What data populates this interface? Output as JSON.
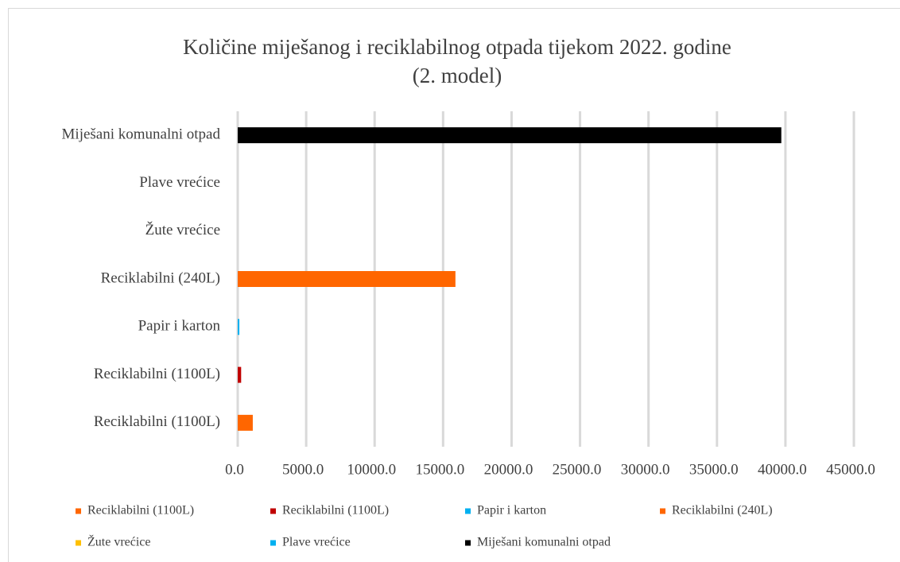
{
  "chart_data": {
    "type": "bar",
    "orientation": "horizontal",
    "title": [
      "Količine miješanog i reciklabilnog otpada tijekom 2022. godine",
      "(2. model)"
    ],
    "categories": [
      "Reciklabilni (1100L)",
      "Reciklabilni (1100L)",
      "Papir i karton",
      "Reciklabilni (240L)",
      "Žute vrećice",
      "Plave vrećice",
      "Miješani komunalni otpad"
    ],
    "values": [
      1100,
      250,
      120,
      15900,
      0,
      0,
      39700
    ],
    "colors": [
      "#ff6600",
      "#c00000",
      "#00b0f0",
      "#ff6600",
      "#ffc000",
      "#00b0f0",
      "#000000"
    ],
    "xlim": [
      0,
      45000
    ],
    "xticks": [
      {
        "value": 0,
        "label": "0.0"
      },
      {
        "value": 5000,
        "label": "5000.0"
      },
      {
        "value": 10000,
        "label": "10000.0"
      },
      {
        "value": 15000,
        "label": "15000.0"
      },
      {
        "value": 20000,
        "label": "20000.0"
      },
      {
        "value": 25000,
        "label": "25000.0"
      },
      {
        "value": 30000,
        "label": "30000.0"
      },
      {
        "value": 35000,
        "label": "35000.0"
      },
      {
        "value": 40000,
        "label": "40000.0"
      },
      {
        "value": 45000,
        "label": "45000.0"
      }
    ],
    "grid": true,
    "legend": "bottom"
  }
}
